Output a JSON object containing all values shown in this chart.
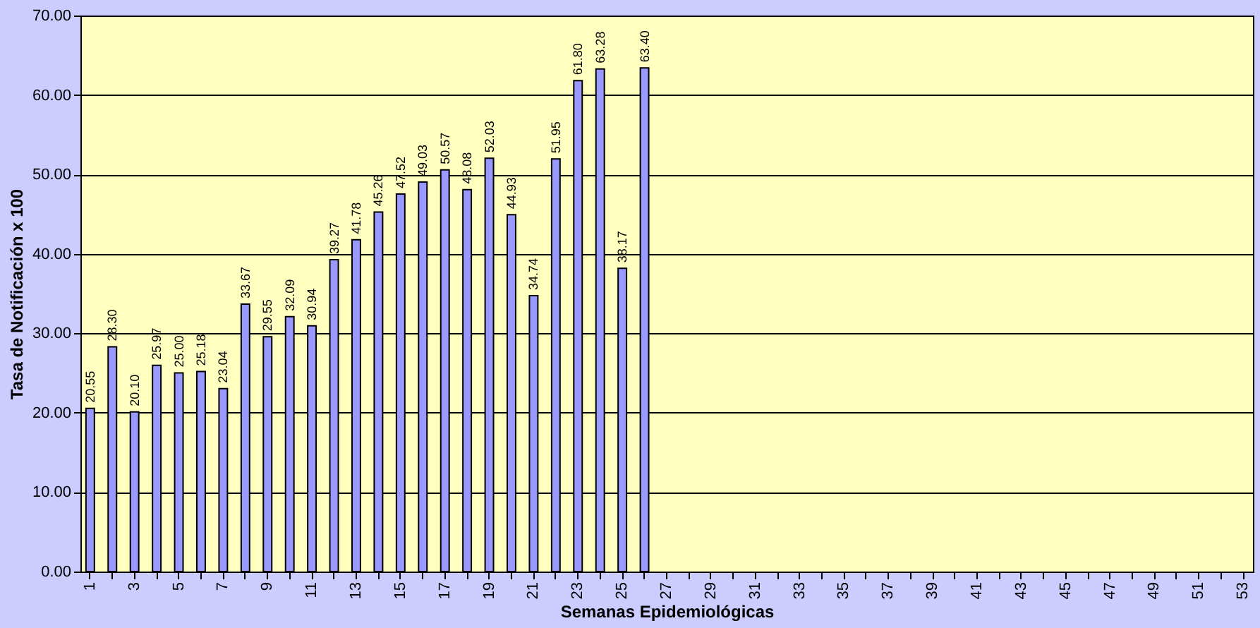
{
  "chart_data": {
    "type": "bar",
    "xlabel": "Semanas Epidemiológicas",
    "ylabel": "Tasa de Notificación x 100",
    "categories": [
      "1",
      null,
      "3",
      null,
      "5",
      null,
      "7",
      null,
      "9",
      null,
      "11",
      null,
      "13",
      null,
      "15",
      null,
      "17",
      null,
      "19",
      null,
      "21",
      null,
      "23",
      null,
      "25",
      null,
      "27",
      null,
      "29",
      null,
      "31",
      null,
      "33",
      null,
      "35",
      null,
      "37",
      null,
      "39",
      null,
      "41",
      null,
      "43",
      null,
      "45",
      null,
      "47",
      null,
      "49",
      null,
      "51",
      null,
      "53"
    ],
    "values": [
      20.55,
      28.3,
      20.1,
      25.97,
      25.0,
      25.18,
      23.04,
      33.67,
      29.55,
      32.09,
      30.94,
      39.27,
      41.78,
      45.26,
      47.52,
      49.03,
      50.57,
      48.08,
      52.03,
      44.93,
      34.74,
      51.95,
      61.8,
      63.28,
      38.17,
      63.4,
      null,
      null,
      null,
      null,
      null,
      null,
      null,
      null,
      null,
      null,
      null,
      null,
      null,
      null,
      null,
      null,
      null,
      null,
      null,
      null,
      null,
      null,
      null,
      null,
      null,
      null,
      null
    ],
    "value_labels": [
      "20.55",
      "28.30",
      "20.10",
      "25.97",
      "25.00",
      "25.18",
      "23.04",
      "33.67",
      "29.55",
      "32.09",
      "30.94",
      "39.27",
      "41.78",
      "45.26",
      "47.52",
      "49.03",
      "50.57",
      "48.08",
      "52.03",
      "44.93",
      "34.74",
      "51.95",
      "61.80",
      "63.28",
      "38.17",
      "63.40",
      null,
      null,
      null,
      null,
      null,
      null,
      null,
      null,
      null,
      null,
      null,
      null,
      null,
      null,
      null,
      null,
      null,
      null,
      null,
      null,
      null,
      null,
      null,
      null,
      null,
      null,
      null
    ],
    "color": "#9999ff",
    "ylim": [
      0,
      70
    ],
    "yticks": [
      {
        "value": 0,
        "label": "0.00"
      },
      {
        "value": 10,
        "label": "10.00"
      },
      {
        "value": 20,
        "label": "20.00"
      },
      {
        "value": 30,
        "label": "30.00"
      },
      {
        "value": 40,
        "label": "40.00"
      },
      {
        "value": 50,
        "label": "50.00"
      },
      {
        "value": 60,
        "label": "60.00"
      },
      {
        "value": 70,
        "label": "70.00"
      }
    ],
    "grid": "y"
  }
}
